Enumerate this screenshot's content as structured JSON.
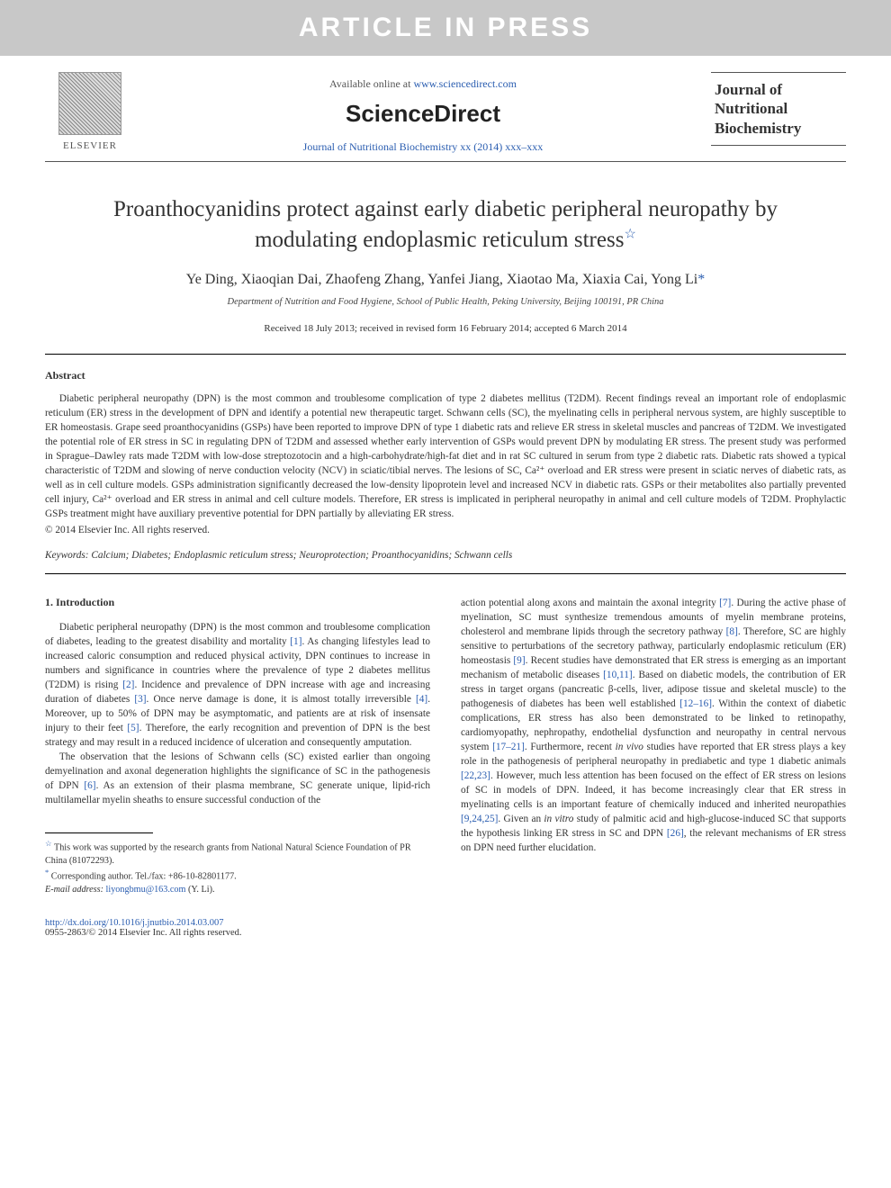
{
  "banner": "ARTICLE IN PRESS",
  "header": {
    "elsevier": "ELSEVIER",
    "available_prefix": "Available online at ",
    "available_url": "www.sciencedirect.com",
    "sciencedirect": "ScienceDirect",
    "journal_ref": "Journal of Nutritional Biochemistry xx (2014) xxx–xxx",
    "badge": {
      "l1": "Journal of",
      "l2": "Nutritional",
      "l3": "Biochemistry"
    }
  },
  "title": {
    "line1": "Proanthocyanidins protect against early diabetic peripheral neuropathy by",
    "line2": "modulating endoplasmic reticulum stress",
    "star": "☆"
  },
  "authors": "Ye Ding, Xiaoqian Dai, Zhaofeng Zhang, Yanfei Jiang, Xiaotao Ma, Xiaxia Cai, Yong Li",
  "corr_mark": "*",
  "affiliation": "Department of Nutrition and Food Hygiene, School of Public Health, Peking University, Beijing 100191, PR China",
  "dates": "Received 18 July 2013; received in revised form 16 February 2014; accepted 6 March 2014",
  "abstract": {
    "heading": "Abstract",
    "text": "Diabetic peripheral neuropathy (DPN) is the most common and troublesome complication of type 2 diabetes mellitus (T2DM). Recent findings reveal an important role of endoplasmic reticulum (ER) stress in the development of DPN and identify a potential new therapeutic target. Schwann cells (SC), the myelinating cells in peripheral nervous system, are highly susceptible to ER homeostasis. Grape seed proanthocyanidins (GSPs) have been reported to improve DPN of type 1 diabetic rats and relieve ER stress in skeletal muscles and pancreas of T2DM. We investigated the potential role of ER stress in SC in regulating DPN of T2DM and assessed whether early intervention of GSPs would prevent DPN by modulating ER stress. The present study was performed in Sprague–Dawley rats made T2DM with low-dose streptozotocin and a high-carbohydrate/high-fat diet and in rat SC cultured in serum from type 2 diabetic rats. Diabetic rats showed a typical characteristic of T2DM and slowing of nerve conduction velocity (NCV) in sciatic/tibial nerves. The lesions of SC, Ca²⁺ overload and ER stress were present in sciatic nerves of diabetic rats, as well as in cell culture models. GSPs administration significantly decreased the low-density lipoprotein level and increased NCV in diabetic rats. GSPs or their metabolites also partially prevented cell injury, Ca²⁺ overload and ER stress in animal and cell culture models. Therefore, ER stress is implicated in peripheral neuropathy in animal and cell culture models of T2DM. Prophylactic GSPs treatment might have auxiliary preventive potential for DPN partially by alleviating ER stress.",
    "copyright": "© 2014 Elsevier Inc. All rights reserved."
  },
  "keywords": {
    "label": "Keywords:",
    "list": "Calcium; Diabetes; Endoplasmic reticulum stress; Neuroprotection; Proanthocyanidins; Schwann cells"
  },
  "intro": {
    "heading": "1. Introduction",
    "left_p1a": "Diabetic peripheral neuropathy (DPN) is the most common and troublesome complication of diabetes, leading to the greatest disability and mortality ",
    "c1": "[1]",
    "left_p1b": ". As changing lifestyles lead to increased caloric consumption and reduced physical activity, DPN continues to increase in numbers and significance in countries where the prevalence of type 2 diabetes mellitus (T2DM) is rising ",
    "c2": "[2]",
    "left_p1c": ". Incidence and prevalence of DPN increase with age and increasing duration of diabetes ",
    "c3": "[3]",
    "left_p1d": ". Once nerve damage is done, it is almost totally irreversible ",
    "c4": "[4]",
    "left_p1e": ". Moreover, up to 50% of DPN may be asymptomatic, and patients are at risk of insensate injury to their feet ",
    "c5": "[5]",
    "left_p1f": ". Therefore, the early recognition and prevention of DPN is the best strategy and may result in a reduced incidence of ulceration and consequently amputation.",
    "left_p2a": "The observation that the lesions of Schwann cells (SC) existed earlier than ongoing demyelination and axonal degeneration highlights the significance of SC in the pathogenesis of DPN ",
    "c6": "[6]",
    "left_p2b": ". As an extension of their plasma membrane, SC generate unique, lipid-rich multilamellar myelin sheaths to ensure successful conduction of the",
    "right_p1a": "action potential along axons and maintain the axonal integrity ",
    "c7": "[7]",
    "right_p1b": ". During the active phase of myelination, SC must synthesize tremendous amounts of myelin membrane proteins, cholesterol and membrane lipids through the secretory pathway ",
    "c8": "[8]",
    "right_p1c": ". Therefore, SC are highly sensitive to perturbations of the secretory pathway, particularly endoplasmic reticulum (ER) homeostasis ",
    "c9": "[9]",
    "right_p1d": ". Recent studies have demonstrated that ER stress is emerging as an important mechanism of metabolic diseases ",
    "c10": "[10,11]",
    "right_p1e": ". Based on diabetic models, the contribution of ER stress in target organs (pancreatic β-cells, liver, adipose tissue and skeletal muscle) to the pathogenesis of diabetes has been well established ",
    "c11": "[12–16]",
    "right_p1f": ". Within the context of diabetic complications, ER stress has also been demonstrated to be linked to retinopathy, cardiomyopathy, nephropathy, endothelial dysfunction and neuropathy in central nervous system ",
    "c12": "[17–21]",
    "right_p1g": ". Furthermore, recent ",
    "invivo": "in vivo",
    "right_p1h": " studies have reported that ER stress plays a key role in the pathogenesis of peripheral neuropathy in prediabetic and type 1 diabetic animals ",
    "c13": "[22,23]",
    "right_p1i": ". However, much less attention has been focused on the effect of ER stress on lesions of SC in models of DPN. Indeed, it has become increasingly clear that ER stress in myelinating cells is an important feature of chemically induced and inherited neuropathies ",
    "c14": "[9,24,25]",
    "right_p1j": ". Given an ",
    "invitro": "in vitro",
    "right_p1k": " study of palmitic acid and high-glucose-induced SC that supports the hypothesis linking ER stress in SC and DPN ",
    "c15": "[26]",
    "right_p1l": ", the relevant mechanisms of ER stress on DPN need further elucidation."
  },
  "footnotes": {
    "f1_star": "☆",
    "f1": " This work was supported by the research grants from National Natural Science Foundation of PR China (81072293).",
    "f2_star": "*",
    "f2": " Corresponding author. Tel./fax: +86-10-82801177.",
    "email_label": "E-mail address:",
    "email": "liyongbmu@163.com",
    "email_suffix": " (Y. Li)."
  },
  "footer": {
    "doi": "http://dx.doi.org/10.1016/j.jnutbio.2014.03.007",
    "issn": "0955-2863/© 2014 Elsevier Inc. All rights reserved."
  },
  "colors": {
    "banner_bg": "#c8c8c8",
    "banner_fg": "#ffffff",
    "link": "#2a5db0",
    "text": "#333333"
  }
}
